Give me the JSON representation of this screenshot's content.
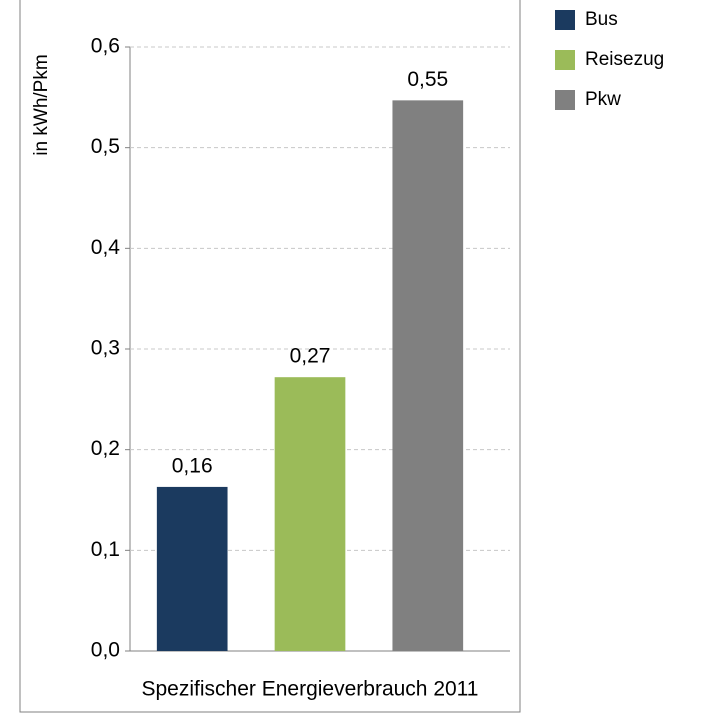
{
  "chart_data": {
    "type": "bar",
    "y_label": "in kWh/Pkm",
    "categories": [
      "Spezifischer Energieverbrauch 2011"
    ],
    "series": [
      {
        "name": "Bus",
        "color": "#1b3a5f",
        "values": [
          0.163
        ],
        "value_labels": [
          "0,16"
        ]
      },
      {
        "name": "Reisezug",
        "color": "#9bbb59",
        "values": [
          0.272
        ],
        "value_labels": [
          "0,27"
        ]
      },
      {
        "name": "Pkw",
        "color": "#808080",
        "values": [
          0.547
        ],
        "value_labels": [
          "0,55"
        ]
      }
    ],
    "ylim": [
      0,
      0.6
    ],
    "yticks": [
      {
        "value": 0,
        "label": "0,0"
      },
      {
        "value": 0.1,
        "label": "0,1"
      },
      {
        "value": 0.2,
        "label": "0,2"
      },
      {
        "value": 0.3,
        "label": "0,3"
      },
      {
        "value": 0.4,
        "label": "0,4"
      },
      {
        "value": 0.5,
        "label": "0,5"
      },
      {
        "value": 0.6,
        "label": "0,6"
      }
    ],
    "grid": true,
    "legend": "right"
  }
}
